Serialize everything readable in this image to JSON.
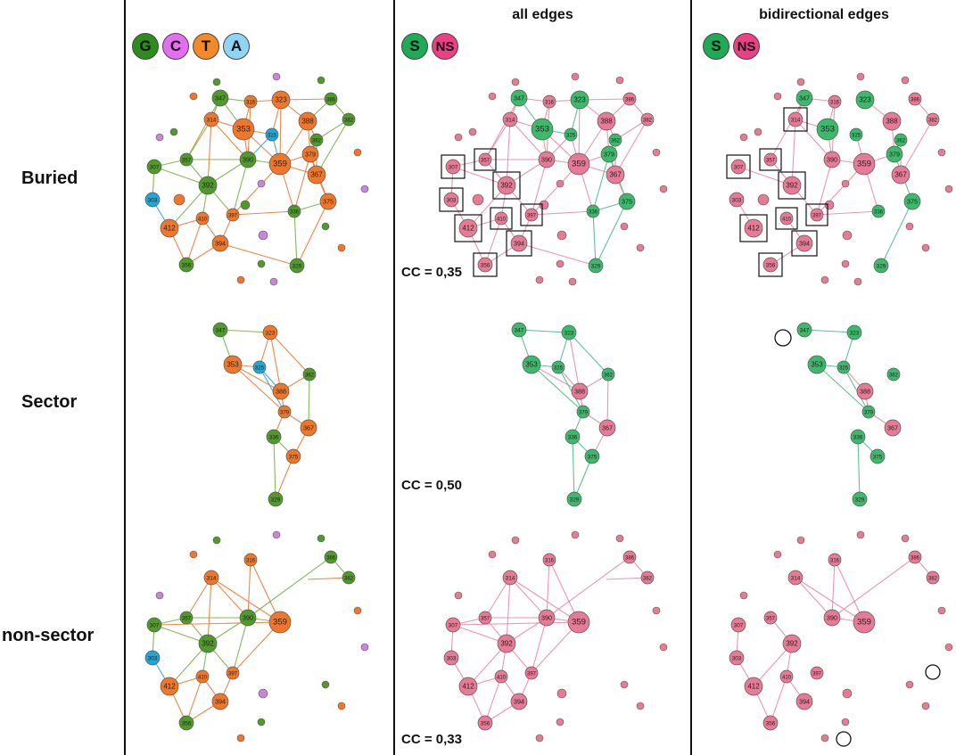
{
  "columns": [
    {
      "title": ""
    },
    {
      "title": "all edges"
    },
    {
      "title": "bidirectional edges"
    }
  ],
  "rows": [
    {
      "label": "Buried"
    },
    {
      "label": "Sector"
    },
    {
      "label": "non-sector"
    }
  ],
  "legend_bases": [
    {
      "letter": "G",
      "color": "#2e8b1e"
    },
    {
      "letter": "C",
      "color": "#e56df0"
    },
    {
      "letter": "T",
      "color": "#f5892a"
    },
    {
      "letter": "A",
      "color": "#8fd4f2"
    }
  ],
  "legend_classes": [
    {
      "letter": "S",
      "color": "#1faa55"
    },
    {
      "letter": "NS",
      "color": "#ec3f86"
    }
  ],
  "cc_values": [
    {
      "text": "CC = 0,35"
    },
    {
      "text": "CC = 0,50"
    },
    {
      "text": "CC = 0,33"
    }
  ],
  "colors": {
    "G": "#4f9a2a",
    "C": "#c985d8",
    "T": "#f0772a",
    "A": "#1fa7d6",
    "S": "#3cb96a",
    "NS": "#e77a95",
    "edge_S": "#52b98a",
    "edge_NS": "#ec8aa6",
    "edge_G": "#79b04a",
    "edge_C": "#d38ce0",
    "edge_T": "#ef7a36",
    "edge_A": "#2aa4d8"
  },
  "nodes": [
    {
      "id": "n1",
      "label": "347",
      "base": "G",
      "cls": "S"
    },
    {
      "id": "n2",
      "label": "316",
      "base": "T",
      "cls": "NS"
    },
    {
      "id": "n3",
      "label": "323",
      "base": "T",
      "cls": "S"
    },
    {
      "id": "n4",
      "label": "386",
      "base": "G",
      "cls": "NS"
    },
    {
      "id": "n5",
      "label": "382",
      "base": "G",
      "cls": "NS"
    },
    {
      "id": "n6",
      "label": "314",
      "base": "T",
      "cls": "NS"
    },
    {
      "id": "n7",
      "label": "353",
      "base": "T",
      "cls": "S"
    },
    {
      "id": "n8",
      "label": "325",
      "base": "A",
      "cls": "S"
    },
    {
      "id": "n9",
      "label": "388",
      "base": "T",
      "cls": "NS"
    },
    {
      "id": "n10",
      "label": "362",
      "base": "G",
      "cls": "S"
    },
    {
      "id": "n11",
      "label": "357",
      "base": "G",
      "cls": "NS"
    },
    {
      "id": "n12",
      "label": "390",
      "base": "G",
      "cls": "NS"
    },
    {
      "id": "n13",
      "label": "359",
      "base": "T",
      "cls": "NS"
    },
    {
      "id": "n14",
      "label": "379",
      "base": "T",
      "cls": "S"
    },
    {
      "id": "n15",
      "label": "307",
      "base": "G",
      "cls": "NS"
    },
    {
      "id": "n16",
      "label": "392",
      "base": "G",
      "cls": "NS"
    },
    {
      "id": "n17",
      "label": "367",
      "base": "T",
      "cls": "NS"
    },
    {
      "id": "n18",
      "label": "303",
      "base": "A",
      "cls": "NS"
    },
    {
      "id": "n19",
      "label": "410",
      "base": "T",
      "cls": "NS"
    },
    {
      "id": "n20",
      "label": "397",
      "base": "T",
      "cls": "NS"
    },
    {
      "id": "n21",
      "label": "336",
      "base": "G",
      "cls": "S"
    },
    {
      "id": "n22",
      "label": "375",
      "base": "T",
      "cls": "S"
    },
    {
      "id": "n23",
      "label": "412",
      "base": "T",
      "cls": "NS"
    },
    {
      "id": "n24",
      "label": "394",
      "base": "T",
      "cls": "NS"
    },
    {
      "id": "n25",
      "label": "356",
      "base": "G",
      "cls": "NS"
    },
    {
      "id": "n26",
      "label": "329",
      "base": "G",
      "cls": "S"
    }
  ]
}
